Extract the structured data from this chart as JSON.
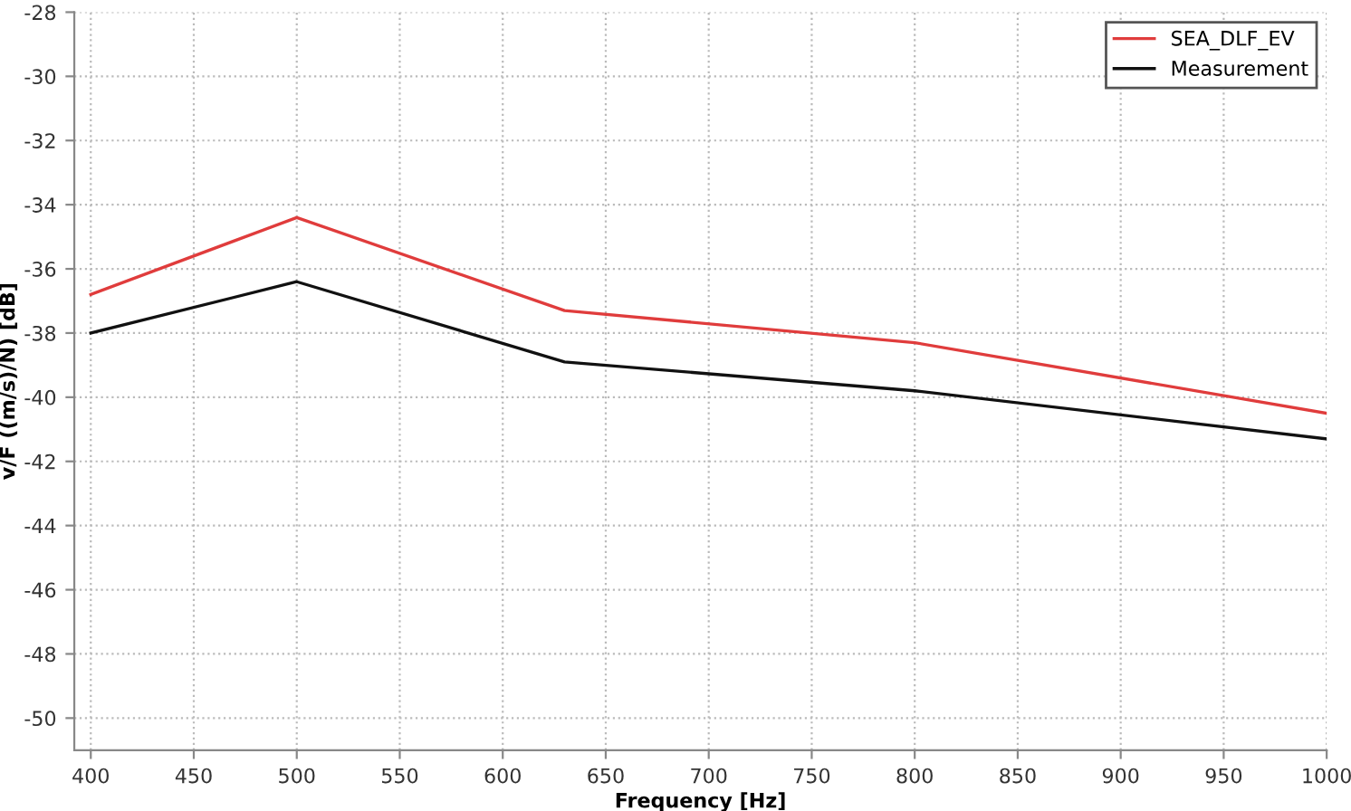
{
  "chart_data": {
    "type": "line",
    "xlabel": "Frequency [Hz]",
    "ylabel": "v/F ((m/s)/N) [dB]",
    "x": [
      400,
      500,
      630,
      800,
      1000
    ],
    "series": [
      {
        "name": "SEA_DLF_EV",
        "color": "#e03c3c",
        "values": [
          -36.8,
          -34.4,
          -37.3,
          -38.3,
          -40.5
        ]
      },
      {
        "name": "Measurement",
        "color": "#111111",
        "values": [
          -38.0,
          -36.4,
          -38.9,
          -39.8,
          -41.3
        ]
      }
    ],
    "xlim": [
      392,
      1000
    ],
    "xticks": [
      400,
      450,
      500,
      550,
      600,
      650,
      700,
      750,
      800,
      850,
      900,
      950,
      1000
    ],
    "ylim": [
      -51,
      -28
    ],
    "yticks": [
      -50,
      -48,
      -46,
      -44,
      -42,
      -40,
      -38,
      -36,
      -34,
      -32,
      -30,
      -28
    ],
    "grid": true,
    "legend": "top right",
    "line_style": "solid",
    "marker": "none"
  }
}
